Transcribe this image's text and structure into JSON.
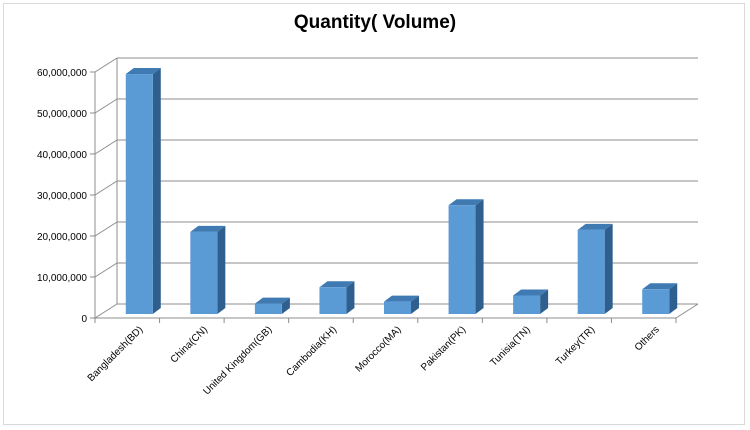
{
  "chart_data": {
    "type": "bar",
    "title": "Quantity( Volume)",
    "xlabel": "",
    "ylabel": "",
    "categories": [
      "Bangladesh(BD)",
      "China(CN)",
      "United Kingdom(GB)",
      "Cambodia(KH)",
      "Morocco(MA)",
      "Pakistan(PK)",
      "Tunisia(TN)",
      "Turkey(TR)",
      "Others"
    ],
    "values": [
      59500000,
      21000000,
      3500000,
      7500000,
      4000000,
      27500000,
      5500000,
      21500000,
      7000000
    ],
    "ylim": [
      0,
      60000000
    ],
    "yticks": [
      "0",
      "10,000,000",
      "20,000,000",
      "30,000,000",
      "40,000,000",
      "50,000,000",
      "60,000,000"
    ],
    "grid": true,
    "legend": "none",
    "colors": {
      "bar_front": "#5b9bd5",
      "bar_side": "#2e5f8f",
      "bar_top": "#3f7ab3",
      "grid": "#8c8c8c"
    }
  }
}
